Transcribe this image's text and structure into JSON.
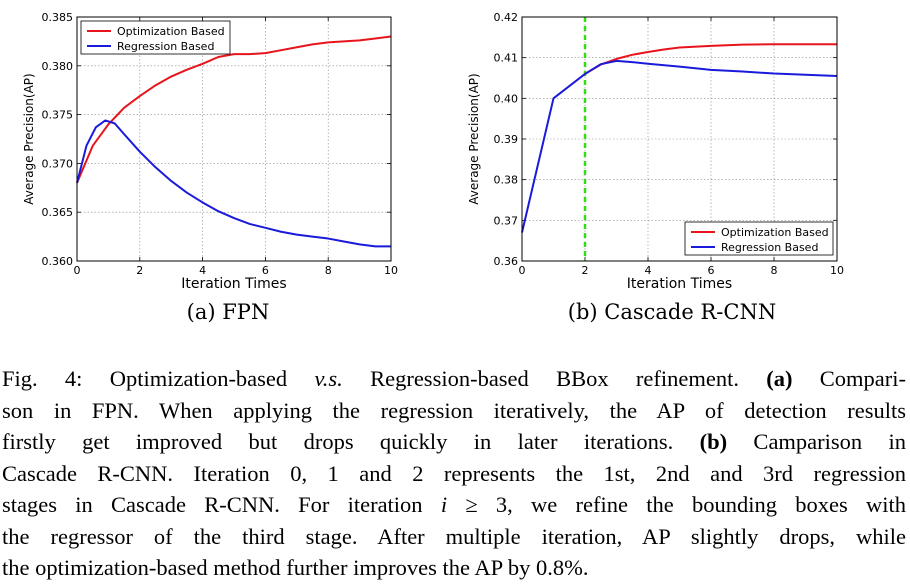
{
  "chart_data": [
    {
      "type": "line",
      "title": "",
      "xlabel": "Iteration Times",
      "ylabel": "Average Precision(AP)",
      "xlim": [
        0,
        10
      ],
      "ylim": [
        0.36,
        0.385
      ],
      "xticks": [
        "0",
        "2",
        "4",
        "6",
        "8",
        "10"
      ],
      "yticks": [
        "0.360",
        "0.365",
        "0.370",
        "0.375",
        "0.380",
        "0.385"
      ],
      "grid": true,
      "legend_position": "top-left",
      "series": [
        {
          "name": "Optimization Based",
          "color": "#e8141b",
          "x": [
            0,
            0.5,
            1,
            1.5,
            2,
            2.5,
            3,
            3.5,
            4,
            4.5,
            5,
            5.5,
            6,
            6.5,
            7,
            7.5,
            8,
            8.5,
            9,
            9.5,
            10
          ],
          "y": [
            0.368,
            0.3718,
            0.374,
            0.3757,
            0.3769,
            0.378,
            0.3789,
            0.3796,
            0.3802,
            0.3809,
            0.3812,
            0.3812,
            0.3813,
            0.3816,
            0.3819,
            0.3822,
            0.3824,
            0.3825,
            0.3826,
            0.3828,
            0.383
          ]
        },
        {
          "name": "Regression Based",
          "color": "#1a1adb",
          "x": [
            0,
            0.3,
            0.6,
            0.9,
            1.2,
            1.5,
            2,
            2.5,
            3,
            3.5,
            4,
            4.5,
            5,
            5.5,
            6,
            6.5,
            7,
            7.5,
            8,
            8.5,
            9,
            9.5,
            10
          ],
          "y": [
            0.368,
            0.3718,
            0.3737,
            0.3744,
            0.3741,
            0.373,
            0.3712,
            0.3696,
            0.3682,
            0.367,
            0.366,
            0.3651,
            0.3644,
            0.3638,
            0.3634,
            0.363,
            0.3627,
            0.3625,
            0.3623,
            0.362,
            0.3617,
            0.3615,
            0.3615
          ]
        }
      ]
    },
    {
      "type": "line",
      "title": "",
      "xlabel": "Iteration Times",
      "ylabel": "Average Precision(AP)",
      "xlim": [
        0,
        10
      ],
      "ylim": [
        0.36,
        0.42
      ],
      "xticks": [
        "0",
        "2",
        "4",
        "6",
        "8",
        "10"
      ],
      "yticks": [
        "0.36",
        "0.37",
        "0.38",
        "0.39",
        "0.40",
        "0.41",
        "0.42"
      ],
      "grid": true,
      "legend_position": "bottom-right",
      "vline": {
        "x": 2,
        "color": "#33dd11",
        "style": "dashed"
      },
      "series": [
        {
          "name": "Optimization Based",
          "color": "#e8141b",
          "x": [
            2,
            2.5,
            3,
            3.5,
            4,
            4.5,
            5,
            6,
            7,
            8,
            9,
            10
          ],
          "y": [
            0.406,
            0.4083,
            0.4097,
            0.4107,
            0.4114,
            0.412,
            0.4125,
            0.4129,
            0.4132,
            0.4133,
            0.4133,
            0.4133
          ]
        },
        {
          "name": "Regression Based",
          "color": "#1a1adb",
          "x": [
            0,
            1,
            2,
            2.5,
            3,
            3.5,
            4,
            5,
            6,
            7,
            8,
            9,
            10
          ],
          "y": [
            0.367,
            0.4,
            0.406,
            0.4084,
            0.4092,
            0.4089,
            0.4085,
            0.4078,
            0.407,
            0.4066,
            0.4061,
            0.4058,
            0.4055
          ]
        }
      ]
    }
  ],
  "subcaptions": [
    "(a) FPN",
    "(b) Cascade R-CNN"
  ],
  "caption": {
    "l1a": "Fig. 4: Optimization-based ",
    "l1b": "v.s.",
    "l1c": " Regression-based BBox refinement. ",
    "l1d": "(a)",
    "l1e": " Compari-",
    "l2": "son in FPN. When applying the regression iteratively, the AP of detection results",
    "l3a": "firstly get improved but drops quickly in later iterations. ",
    "l3b": "(b)",
    "l3c": " Camparison in",
    "l4": "Cascade R-CNN. Iteration 0, 1 and 2 represents the 1st, 2nd and 3rd regression",
    "l5a": "stages in Cascade R-CNN. For iteration ",
    "l5b": "i",
    "l5c": " ≥ 3, we refine the bounding boxes with",
    "l6": "the regressor of the third stage. After multiple iteration, AP slightly drops, while",
    "l7": "the optimization-based method further improves the AP by 0.8%."
  }
}
